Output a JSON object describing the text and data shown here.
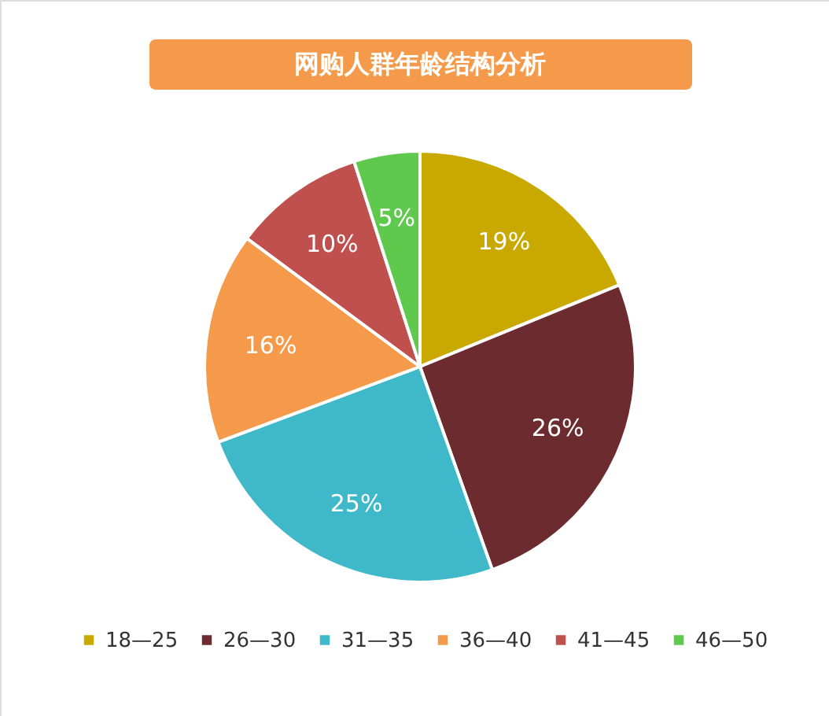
{
  "chart_data": {
    "type": "pie",
    "title": "网购人群年龄结构分析",
    "categories": [
      "18—25",
      "26—30",
      "31—35",
      "36—40",
      "41—45",
      "46—50"
    ],
    "values": [
      19,
      26,
      25,
      16,
      10,
      5
    ],
    "colors": [
      "#c9a800",
      "#6b2b2f",
      "#3fb9c9",
      "#f59a4b",
      "#c0504d",
      "#5fc94d"
    ],
    "value_labels": [
      "19%",
      "26%",
      "25%",
      "16%",
      "10%",
      "5%"
    ],
    "legend": "bottom"
  }
}
